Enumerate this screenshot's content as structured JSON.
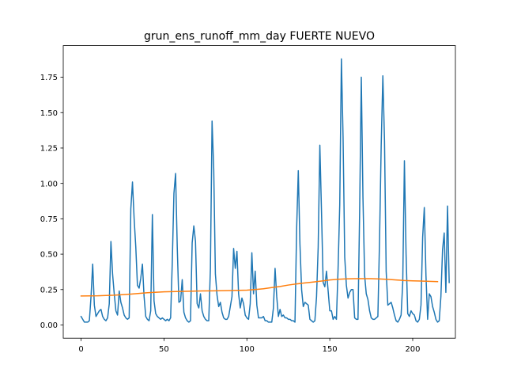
{
  "chart_data": {
    "type": "line",
    "title": "grun_ens_runoff_mm_day FUERTE NUEVO",
    "xlabel": "",
    "ylabel": "",
    "xlim": [
      -10.75,
      225.75
    ],
    "ylim": [
      -0.0935,
      1.9735
    ],
    "xticks": [
      0,
      50,
      100,
      150,
      200
    ],
    "xtick_labels": [
      "0",
      "50",
      "100",
      "150",
      "200"
    ],
    "yticks": [
      0.0,
      0.25,
      0.5,
      0.75,
      1.0,
      1.25,
      1.5,
      1.75
    ],
    "ytick_labels": [
      "0.00",
      "0.25",
      "0.50",
      "0.75",
      "1.00",
      "1.25",
      "1.50",
      "1.75"
    ],
    "grid": false,
    "legend": "none",
    "series": [
      {
        "color": "#1f77b4",
        "values": [
          0.06,
          0.04,
          0.02,
          0.02,
          0.02,
          0.03,
          0.2,
          0.43,
          0.14,
          0.06,
          0.08,
          0.1,
          0.11,
          0.06,
          0.04,
          0.03,
          0.05,
          0.15,
          0.59,
          0.36,
          0.22,
          0.1,
          0.07,
          0.24,
          0.16,
          0.12,
          0.07,
          0.05,
          0.04,
          0.05,
          0.82,
          1.01,
          0.75,
          0.55,
          0.28,
          0.26,
          0.33,
          0.43,
          0.2,
          0.06,
          0.04,
          0.03,
          0.1,
          0.78,
          0.17,
          0.08,
          0.06,
          0.05,
          0.04,
          0.05,
          0.04,
          0.03,
          0.04,
          0.03,
          0.05,
          0.44,
          0.93,
          1.07,
          0.55,
          0.16,
          0.17,
          0.32,
          0.09,
          0.05,
          0.03,
          0.02,
          0.03,
          0.58,
          0.7,
          0.59,
          0.15,
          0.12,
          0.22,
          0.1,
          0.06,
          0.04,
          0.03,
          0.03,
          0.4,
          1.44,
          1.1,
          0.36,
          0.21,
          0.13,
          0.16,
          0.09,
          0.05,
          0.04,
          0.04,
          0.06,
          0.13,
          0.2,
          0.54,
          0.4,
          0.52,
          0.22,
          0.12,
          0.19,
          0.15,
          0.07,
          0.05,
          0.04,
          0.15,
          0.51,
          0.22,
          0.38,
          0.14,
          0.05,
          0.05,
          0.05,
          0.06,
          0.03,
          0.03,
          0.02,
          0.02,
          0.02,
          0.12,
          0.4,
          0.2,
          0.06,
          0.11,
          0.06,
          0.07,
          0.05,
          0.05,
          0.04,
          0.04,
          0.03,
          0.03,
          0.02,
          0.68,
          1.09,
          0.57,
          0.25,
          0.13,
          0.16,
          0.15,
          0.14,
          0.04,
          0.03,
          0.02,
          0.03,
          0.2,
          0.55,
          1.27,
          0.8,
          0.3,
          0.27,
          0.38,
          0.24,
          0.1,
          0.1,
          0.04,
          0.06,
          0.04,
          0.4,
          0.85,
          1.88,
          1.33,
          0.48,
          0.28,
          0.19,
          0.23,
          0.25,
          0.25,
          0.05,
          0.04,
          0.04,
          0.8,
          1.75,
          0.9,
          0.35,
          0.22,
          0.18,
          0.1,
          0.05,
          0.04,
          0.04,
          0.05,
          0.06,
          0.6,
          1.27,
          1.76,
          1.3,
          0.38,
          0.14,
          0.15,
          0.16,
          0.12,
          0.07,
          0.03,
          0.02,
          0.04,
          0.07,
          0.3,
          1.16,
          0.5,
          0.08,
          0.06,
          0.1,
          0.08,
          0.07,
          0.03,
          0.02,
          0.04,
          0.14,
          0.62,
          0.83,
          0.35,
          0.04,
          0.22,
          0.2,
          0.13,
          0.09,
          0.04,
          0.02,
          0.03,
          0.2,
          0.53,
          0.65,
          0.23,
          0.84,
          0.3
        ]
      },
      {
        "color": "#ff7f0e",
        "points": [
          [
            0,
            0.205
          ],
          [
            10,
            0.206
          ],
          [
            20,
            0.21
          ],
          [
            30,
            0.218
          ],
          [
            40,
            0.228
          ],
          [
            50,
            0.234
          ],
          [
            60,
            0.237
          ],
          [
            70,
            0.24
          ],
          [
            80,
            0.241
          ],
          [
            90,
            0.243
          ],
          [
            100,
            0.246
          ],
          [
            105,
            0.25
          ],
          [
            110,
            0.256
          ],
          [
            115,
            0.264
          ],
          [
            120,
            0.272
          ],
          [
            125,
            0.282
          ],
          [
            130,
            0.29
          ],
          [
            135,
            0.297
          ],
          [
            140,
            0.303
          ],
          [
            145,
            0.31
          ],
          [
            150,
            0.318
          ],
          [
            155,
            0.323
          ],
          [
            160,
            0.326
          ],
          [
            165,
            0.327
          ],
          [
            170,
            0.327
          ],
          [
            175,
            0.327
          ],
          [
            180,
            0.325
          ],
          [
            185,
            0.322
          ],
          [
            190,
            0.318
          ],
          [
            195,
            0.314
          ],
          [
            200,
            0.312
          ],
          [
            205,
            0.31
          ],
          [
            210,
            0.308
          ],
          [
            215,
            0.306
          ]
        ]
      }
    ]
  }
}
